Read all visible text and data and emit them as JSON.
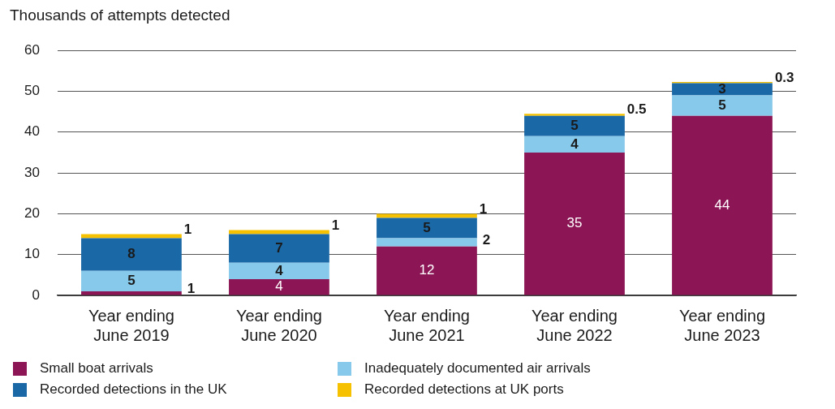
{
  "chart_data": {
    "type": "bar",
    "ylabel": "Thousands of attempts detected",
    "categories": [
      "Year ending\nJune 2019",
      "Year ending\nJune 2020",
      "Year ending\nJune 2021",
      "Year ending\nJune 2022",
      "Year ending\nJune 2023"
    ],
    "series": [
      {
        "name": "Small boat arrivals",
        "color": "#8c1655",
        "values": [
          1,
          4,
          12,
          35,
          44
        ]
      },
      {
        "name": "Inadequately documented air arrivals",
        "color": "#87c9ea",
        "values": [
          5,
          4,
          2,
          4,
          5
        ]
      },
      {
        "name": "Recorded detections in the UK",
        "color": "#1b68a6",
        "values": [
          8,
          7,
          5,
          5,
          3
        ]
      },
      {
        "name": "Recorded detections at UK ports",
        "color": "#f5c100",
        "values": [
          1,
          1,
          1,
          0.5,
          0.3
        ]
      }
    ],
    "stacked": true,
    "ylim": [
      0,
      60
    ],
    "yticks": [
      0,
      10,
      20,
      30,
      40,
      50,
      60
    ],
    "grid": "y",
    "legend": "bottom",
    "data_labels": true
  }
}
